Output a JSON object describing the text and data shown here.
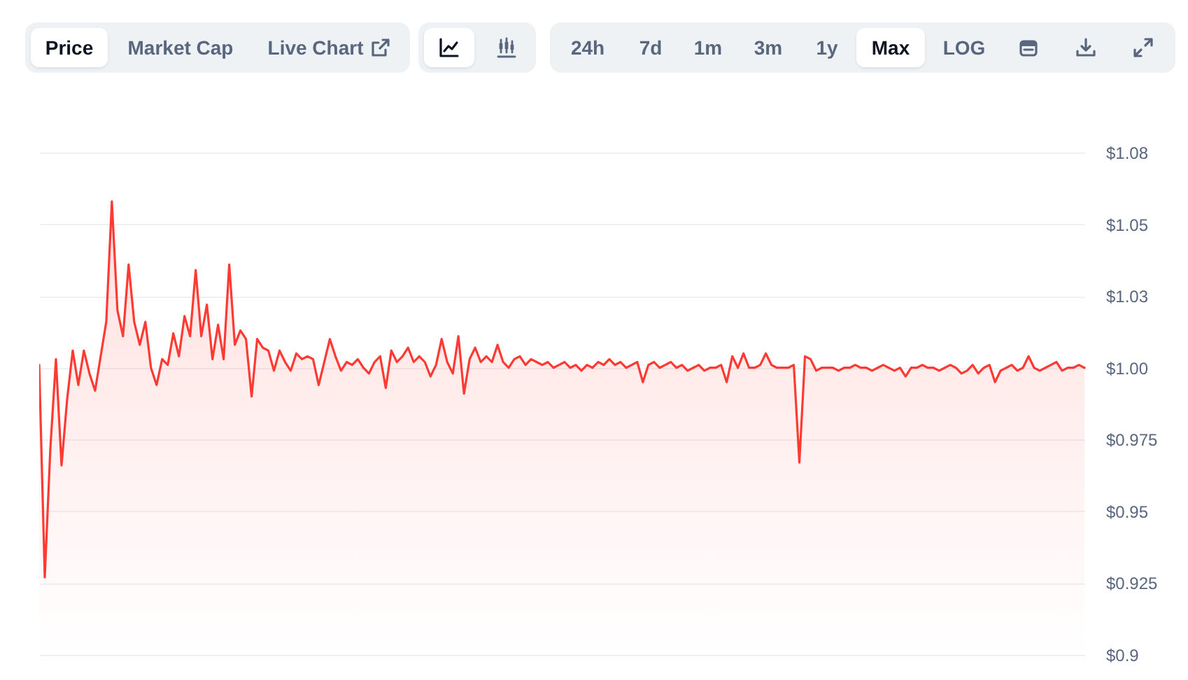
{
  "chart_data": {
    "type": "area",
    "annotations": [
      "Price",
      "Market Cap",
      "Live Chart",
      "24h",
      "7d",
      "1m",
      "3m",
      "1y",
      "Max",
      "LOG"
    ],
    "categories": [
      null,
      null,
      null,
      null,
      null,
      null,
      null,
      null,
      null,
      null,
      null,
      null,
      null,
      null,
      null,
      null,
      null,
      null,
      null,
      null,
      null,
      null,
      null,
      null,
      null,
      null,
      null,
      null,
      null,
      null,
      null,
      null,
      null,
      null,
      null,
      null,
      null,
      null,
      null,
      null,
      null,
      null,
      null,
      null,
      null,
      null,
      null,
      null,
      null,
      null,
      null,
      null,
      null,
      null,
      null,
      null,
      null,
      null,
      null,
      null,
      null,
      null,
      null,
      null,
      null,
      null,
      null,
      null,
      null,
      null,
      null,
      null,
      null,
      null,
      null,
      null,
      null,
      null,
      null,
      null,
      null,
      null,
      null,
      null,
      null,
      null,
      null,
      null,
      null,
      null,
      null,
      null,
      null,
      null,
      null,
      null,
      null,
      null,
      null,
      null,
      null,
      null,
      null,
      null,
      null,
      null,
      null,
      null,
      null,
      null,
      null,
      null,
      null,
      null,
      null,
      null,
      null,
      null,
      null,
      null,
      null,
      null,
      null,
      null,
      null,
      null,
      null,
      null,
      null,
      null,
      null,
      null,
      null,
      null,
      null,
      null,
      null,
      null,
      null,
      null,
      null,
      null,
      null,
      null,
      null,
      null,
      null,
      null,
      null,
      null,
      null,
      null,
      null,
      null,
      null,
      null,
      null,
      null,
      null,
      null,
      null,
      null,
      null,
      null,
      null,
      null,
      null,
      null,
      null,
      null,
      null,
      null,
      null,
      null,
      null,
      null,
      null,
      null,
      null,
      null,
      null,
      null,
      null,
      null,
      null,
      null,
      null,
      null
    ],
    "series": [
      {
        "color": "#ff3a33",
        "values": [
          1.001,
          0.927,
          0.972,
          1.003,
          0.966,
          0.989,
          1.006,
          0.994,
          1.006,
          0.998,
          0.992,
          1.004,
          1.016,
          1.058,
          1.02,
          1.011,
          1.036,
          1.016,
          1.008,
          1.016,
          1.0,
          0.994,
          1.003,
          1.001,
          1.012,
          1.004,
          1.018,
          1.011,
          1.034,
          1.011,
          1.022,
          1.003,
          1.015,
          1.003,
          1.036,
          1.008,
          1.013,
          1.01,
          0.99,
          1.01,
          1.007,
          1.006,
          0.999,
          1.006,
          1.002,
          0.999,
          1.005,
          1.003,
          1.004,
          1.003,
          0.994,
          1.002,
          1.01,
          1.004,
          0.999,
          1.002,
          1.001,
          1.003,
          1.0,
          0.998,
          1.002,
          1.004,
          0.993,
          1.006,
          1.002,
          1.004,
          1.007,
          1.002,
          1.004,
          1.002,
          0.997,
          1.001,
          1.01,
          1.002,
          0.998,
          1.011,
          0.991,
          1.003,
          1.007,
          1.002,
          1.004,
          1.002,
          1.008,
          1.002,
          1.0,
          1.003,
          1.004,
          1.001,
          1.003,
          1.002,
          1.001,
          1.002,
          1.0,
          1.001,
          1.002,
          1.0,
          1.001,
          0.999,
          1.001,
          1.0,
          1.002,
          1.001,
          1.003,
          1.001,
          1.002,
          1.0,
          1.001,
          1.002,
          0.995,
          1.001,
          1.002,
          1.0,
          1.001,
          1.002,
          1.0,
          1.001,
          0.999,
          1.0,
          1.001,
          0.999,
          1.0,
          1.0,
          1.001,
          0.995,
          1.004,
          1.0,
          1.005,
          1.0,
          1.0,
          1.001,
          1.005,
          1.001,
          1.0,
          1.0,
          1.0,
          1.001,
          0.967,
          1.004,
          1.003,
          0.999,
          1.0,
          1.0,
          1.0,
          0.999,
          1.0,
          1.0,
          1.001,
          1.0,
          1.0,
          0.999,
          1.0,
          1.001,
          1.0,
          0.999,
          1.0,
          0.997,
          1.0,
          1.0,
          1.001,
          1.0,
          1.0,
          0.999,
          1.0,
          1.001,
          1.0,
          0.998,
          0.999,
          1.001,
          0.998,
          1.0,
          1.001,
          0.995,
          0.999,
          1.0,
          1.001,
          0.999,
          1.0,
          1.004,
          1.0,
          0.999,
          1.0,
          1.001,
          1.002,
          0.999,
          1.0,
          1.0,
          1.001,
          1.0
        ]
      }
    ],
    "ylim": [
      0.9,
      1.075
    ],
    "yticks": [
      {
        "value": 0.9,
        "label": "$0.9"
      },
      {
        "value": 0.925,
        "label": "$0.925"
      },
      {
        "value": 0.95,
        "label": "$0.95"
      },
      {
        "value": 0.975,
        "label": "$0.975"
      },
      {
        "value": 1.0,
        "label": "$1.00"
      },
      {
        "value": 1.025,
        "label": "$1.03"
      },
      {
        "value": 1.05,
        "label": "$1.05"
      },
      {
        "value": 1.075,
        "label": "$1.08"
      }
    ],
    "grid": "y",
    "tick_labels": "y"
  }
}
